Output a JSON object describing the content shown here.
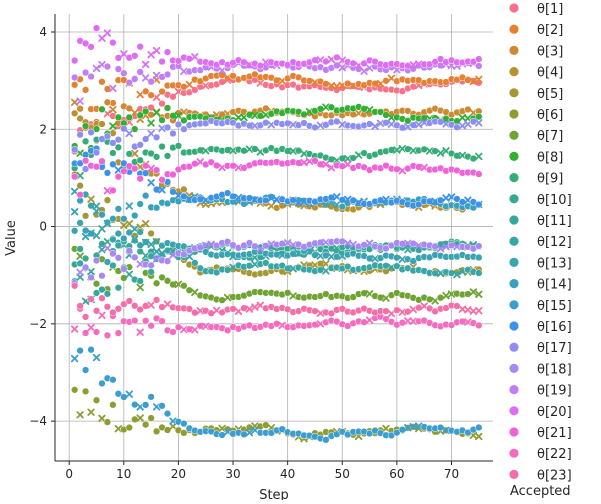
{
  "chart_data": {
    "type": "scatter",
    "title": "",
    "xlabel": "Step",
    "ylabel": "Value",
    "xlim": [
      -2.6,
      77.6
    ],
    "ylim": [
      -4.82,
      4.37
    ],
    "xticks": [
      0,
      10,
      20,
      30,
      40,
      50,
      60,
      70
    ],
    "yticks": [
      -4,
      -2,
      0,
      2,
      4
    ],
    "grid": true,
    "legend": {
      "placement": "right",
      "marker_legend_title": "Accepted"
    },
    "steps": [
      1,
      75
    ],
    "series": [
      {
        "name": "θ[1]",
        "color": "#f77189",
        "start": 1.7,
        "end": 2.9
      },
      {
        "name": "θ[2]",
        "color": "#e58132",
        "start": 2.6,
        "end": 3.0
      },
      {
        "name": "θ[3]",
        "color": "#cc8a32",
        "start": 2.3,
        "end": 2.3
      },
      {
        "name": "θ[4]",
        "color": "#b89131",
        "start": 2.2,
        "end": 0.5
      },
      {
        "name": "θ[5]",
        "color": "#a59732",
        "start": 0.6,
        "end": -0.9
      },
      {
        "name": "θ[6]",
        "color": "#8f9c32",
        "start": -3.7,
        "end": -4.2
      },
      {
        "name": "θ[7]",
        "color": "#6fa332",
        "start": -0.8,
        "end": -1.4
      },
      {
        "name": "θ[8]",
        "color": "#33b034",
        "start": 1.9,
        "end": 2.3
      },
      {
        "name": "θ[9]",
        "color": "#35ac78",
        "start": 1.4,
        "end": 1.5
      },
      {
        "name": "θ[10]",
        "color": "#36a98e",
        "start": -0.7,
        "end": -0.4
      },
      {
        "name": "θ[11]",
        "color": "#37a79c",
        "start": -1.4,
        "end": -0.5
      },
      {
        "name": "θ[12]",
        "color": "#38a5a6",
        "start": 0.4,
        "end": -0.9
      },
      {
        "name": "θ[13]",
        "color": "#39a3b0",
        "start": -0.5,
        "end": -0.6
      },
      {
        "name": "θ[14]",
        "color": "#3aa1bc",
        "start": 0.2,
        "end": 0.5
      },
      {
        "name": "θ[15]",
        "color": "#3c9ece",
        "start": -2.6,
        "end": -4.2
      },
      {
        "name": "θ[16]",
        "color": "#3b92e8",
        "start": 1.6,
        "end": 0.5
      },
      {
        "name": "θ[17]",
        "color": "#8d8ef3",
        "start": 1.5,
        "end": 2.1
      },
      {
        "name": "θ[18]",
        "color": "#a888f4",
        "start": -0.8,
        "end": -0.4
      },
      {
        "name": "θ[19]",
        "color": "#c27ef4",
        "start": 2.9,
        "end": 3.3
      },
      {
        "name": "θ[20]",
        "color": "#dd6ef4",
        "start": 3.9,
        "end": 3.4
      },
      {
        "name": "θ[21]",
        "color": "#f063d8",
        "start": 1.0,
        "end": 1.2
      },
      {
        "name": "θ[22]",
        "color": "#f46bc0",
        "start": -2.0,
        "end": -2.0
      },
      {
        "name": "θ[23]",
        "color": "#f56ea7",
        "start": -1.4,
        "end": -1.7
      }
    ]
  }
}
